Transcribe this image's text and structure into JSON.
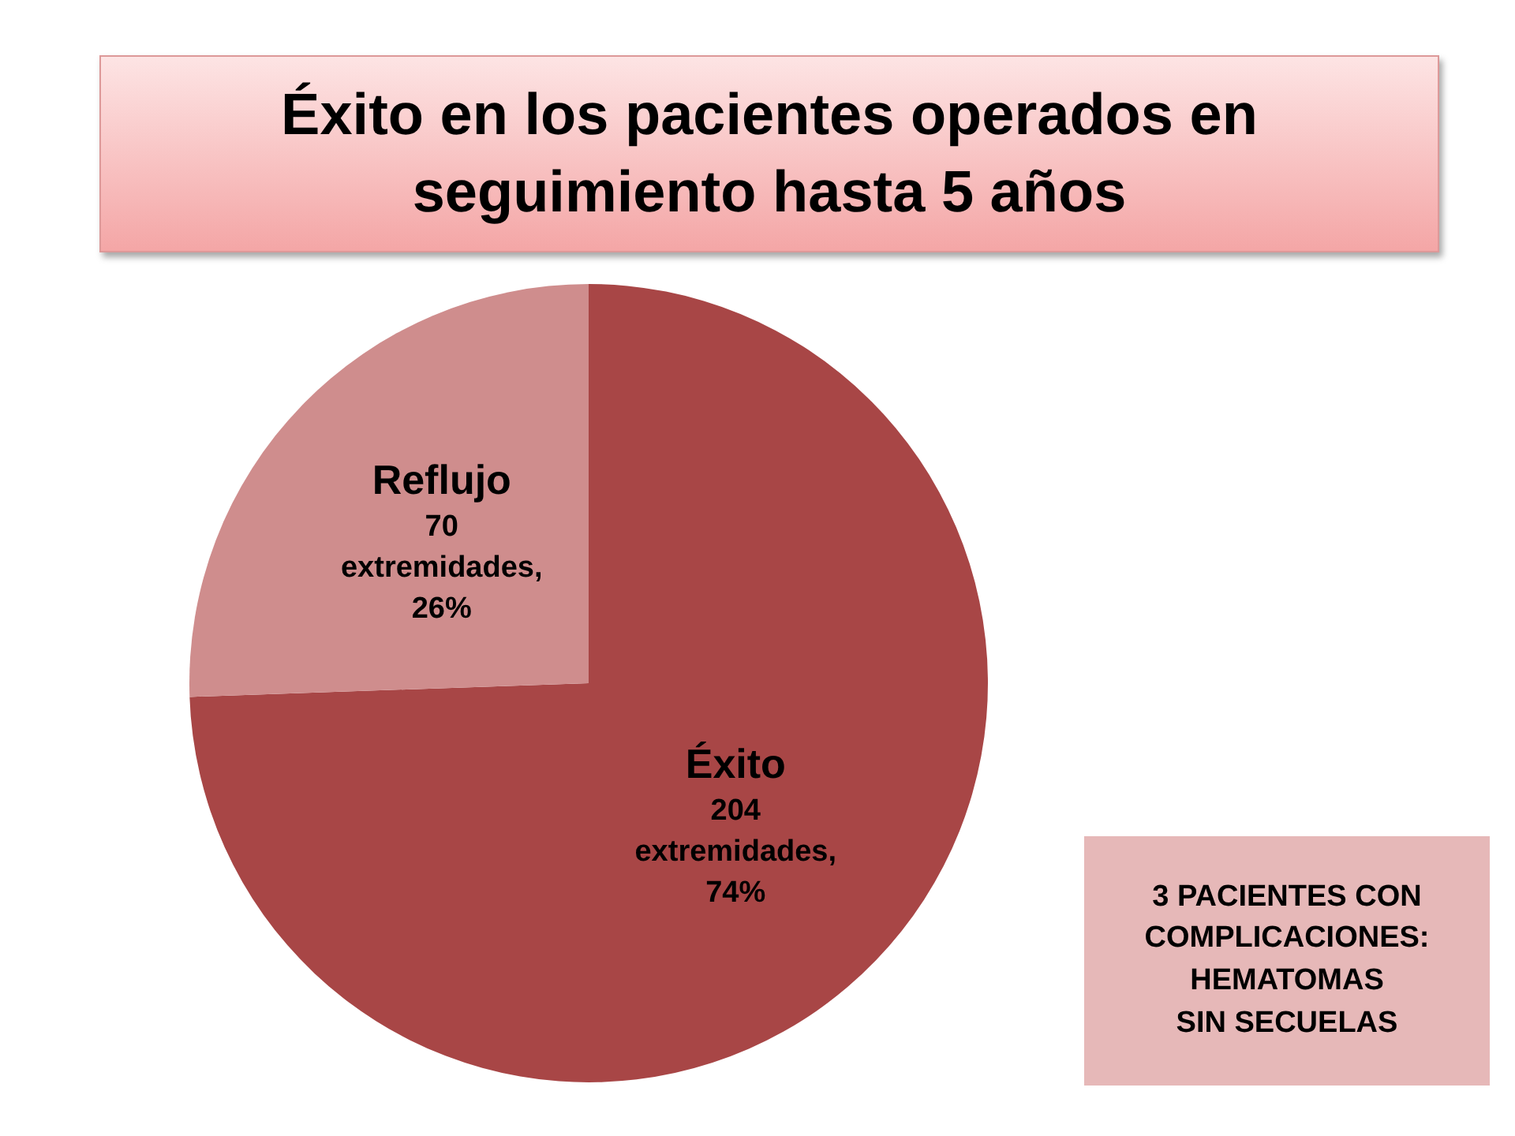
{
  "chart_data": {
    "type": "pie",
    "title": "Éxito en los pacientes operados en seguimiento hasta 5 años",
    "categories": [
      "Éxito",
      "Reflujo"
    ],
    "values": [
      204,
      70
    ],
    "colors": [
      "#a84646",
      "#cf8d8d"
    ],
    "value_labels": [
      "204 extremidades, 74%",
      "70 extremidades, 26%"
    ],
    "annotations": [
      "3 PACIENTES CON\nCOMPLICACIONES:\nHEMATOMAS\nSIN SECUELAS"
    ],
    "legend": false
  }
}
